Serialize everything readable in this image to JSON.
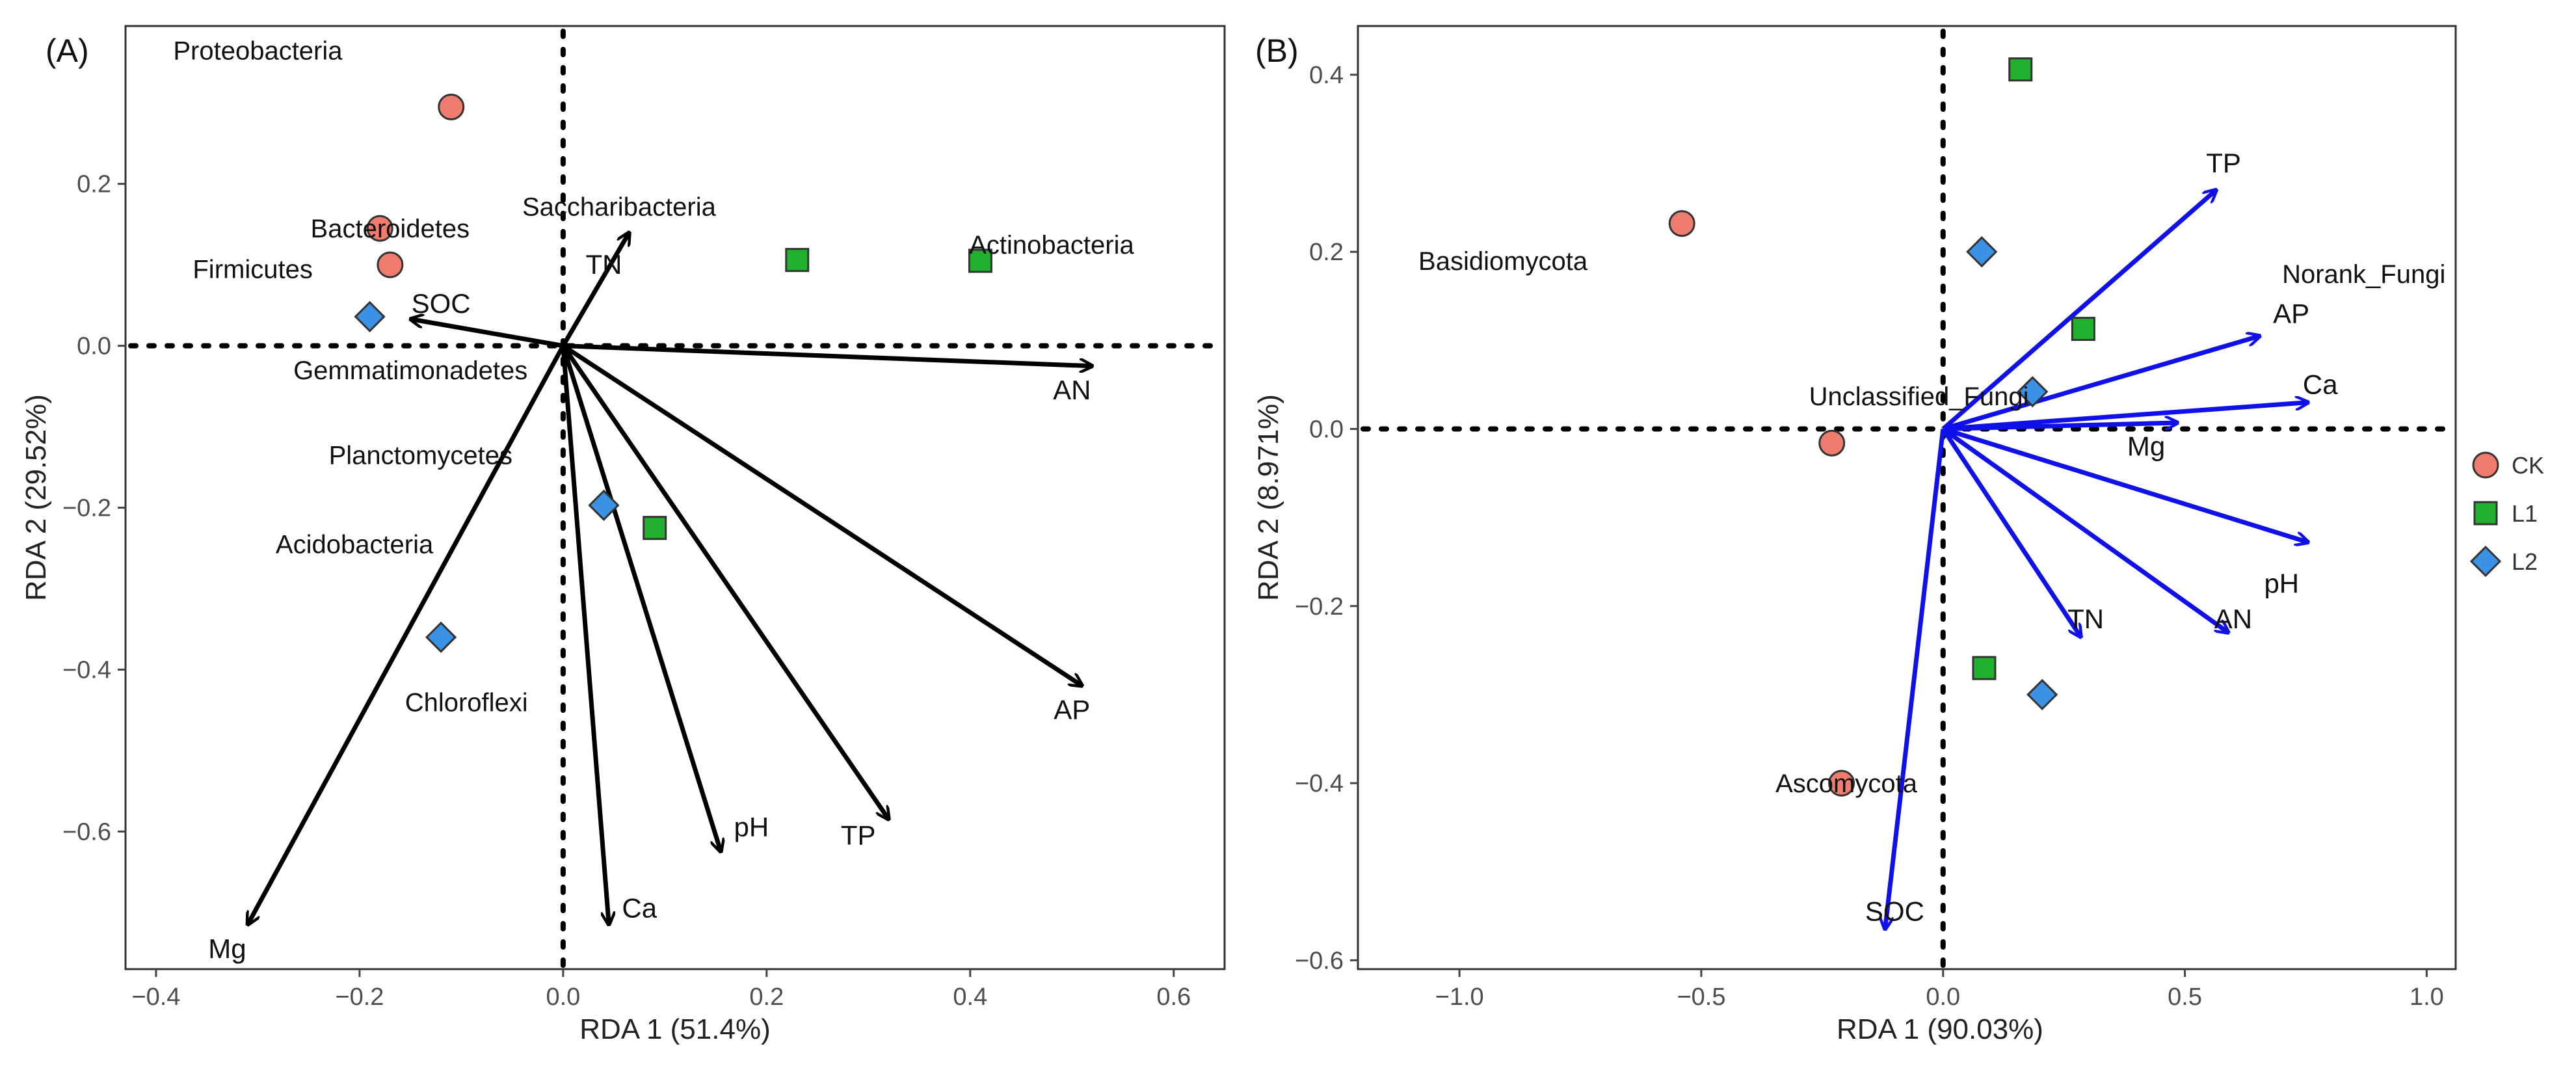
{
  "chart_data": [
    {
      "type": "scatter",
      "subtype": "rda-biplot",
      "panel_label": "(A)",
      "xlabel": "RDA 1 (51.4%)",
      "ylabel": "RDA 2 (29.52%)",
      "xlim": [
        -0.43,
        0.65
      ],
      "ylim": [
        -0.77,
        0.395
      ],
      "xticks": [
        -0.4,
        -0.2,
        0.0,
        0.2,
        0.4,
        0.6
      ],
      "xtick_labels": [
        "−0.4",
        "−0.2",
        "0.0",
        "0.2",
        "0.4",
        "0.6"
      ],
      "yticks": [
        0.2,
        0.0,
        -0.2,
        -0.4,
        -0.6
      ],
      "ytick_labels": [
        "0.2",
        "0.0",
        "−0.2",
        "−0.4",
        "−0.6"
      ],
      "arrow_color": "#000000",
      "samples": [
        {
          "group": "CK",
          "x": -0.11,
          "y": 0.295
        },
        {
          "group": "CK",
          "x": -0.18,
          "y": 0.145
        },
        {
          "group": "CK",
          "x": -0.17,
          "y": 0.1
        },
        {
          "group": "L1",
          "x": 0.23,
          "y": 0.106
        },
        {
          "group": "L1",
          "x": 0.41,
          "y": 0.105
        },
        {
          "group": "L1",
          "x": 0.09,
          "y": -0.225
        },
        {
          "group": "L2",
          "x": -0.19,
          "y": 0.036
        },
        {
          "group": "L2",
          "x": 0.04,
          "y": -0.197
        },
        {
          "group": "L2",
          "x": -0.12,
          "y": -0.36
        }
      ],
      "vectors": [
        {
          "name": "TN",
          "x": 0.065,
          "y": 0.14,
          "lx": 0.04,
          "ly": 0.1
        },
        {
          "name": "SOC",
          "x": -0.15,
          "y": 0.033,
          "lx": -0.12,
          "ly": 0.052
        },
        {
          "name": "AN",
          "x": 0.52,
          "y": -0.025,
          "lx": 0.5,
          "ly": -0.055
        },
        {
          "name": "AP",
          "x": 0.51,
          "y": -0.42,
          "lx": 0.5,
          "ly": -0.45
        },
        {
          "name": "TP",
          "x": 0.32,
          "y": -0.585,
          "lx": 0.29,
          "ly": -0.605
        },
        {
          "name": "pH",
          "x": 0.155,
          "y": -0.625,
          "lx": 0.185,
          "ly": -0.595
        },
        {
          "name": "Ca",
          "x": 0.045,
          "y": -0.715,
          "lx": 0.075,
          "ly": -0.695
        },
        {
          "name": "Mg",
          "x": -0.31,
          "y": -0.715,
          "lx": -0.33,
          "ly": -0.745
        }
      ],
      "taxa": [
        {
          "name": "Proteobacteria",
          "x": -0.3,
          "y": 0.365
        },
        {
          "name": "Bacteroidetes",
          "x": -0.17,
          "y": 0.145
        },
        {
          "name": "Firmicutes",
          "x": -0.305,
          "y": 0.095
        },
        {
          "name": "Saccharibacteria",
          "x": 0.055,
          "y": 0.172
        },
        {
          "name": "Actinobacteria",
          "x": 0.48,
          "y": 0.125
        },
        {
          "name": "Gemmatimonadetes",
          "x": -0.15,
          "y": -0.03
        },
        {
          "name": "Planctomycetes",
          "x": -0.14,
          "y": -0.135
        },
        {
          "name": "Acidobacteria",
          "x": -0.205,
          "y": -0.245
        },
        {
          "name": "Chloroflexi",
          "x": -0.095,
          "y": -0.44
        }
      ]
    },
    {
      "type": "scatter",
      "subtype": "rda-biplot",
      "panel_label": "(B)",
      "xlabel": "RDA 1 (90.03%)",
      "ylabel": "RDA 2 (8.971%)",
      "xlim": [
        -1.21,
        1.06
      ],
      "ylim": [
        -0.61,
        0.455
      ],
      "xticks": [
        -1.0,
        -0.5,
        0.0,
        0.5,
        1.0
      ],
      "xtick_labels": [
        "−1.0",
        "−0.5",
        "0.0",
        "0.5",
        "1.0"
      ],
      "yticks": [
        0.4,
        0.2,
        0.0,
        -0.2,
        -0.4,
        -0.6
      ],
      "ytick_labels": [
        "0.4",
        "0.2",
        "0.0",
        "−0.2",
        "−0.4",
        "−0.6"
      ],
      "arrow_color": "#1010e8",
      "samples": [
        {
          "group": "CK",
          "x": -0.54,
          "y": 0.232
        },
        {
          "group": "CK",
          "x": -0.23,
          "y": -0.016
        },
        {
          "group": "CK",
          "x": -0.21,
          "y": -0.4
        },
        {
          "group": "L1",
          "x": 0.16,
          "y": 0.406
        },
        {
          "group": "L1",
          "x": 0.29,
          "y": 0.113
        },
        {
          "group": "L1",
          "x": 0.085,
          "y": -0.27
        },
        {
          "group": "L2",
          "x": 0.08,
          "y": 0.2
        },
        {
          "group": "L2",
          "x": 0.185,
          "y": 0.042
        },
        {
          "group": "L2",
          "x": 0.205,
          "y": -0.3
        }
      ],
      "vectors": [
        {
          "name": "TP",
          "x": 0.565,
          "y": 0.27,
          "lx": 0.58,
          "ly": 0.3
        },
        {
          "name": "AP",
          "x": 0.655,
          "y": 0.105,
          "lx": 0.72,
          "ly": 0.13
        },
        {
          "name": "Ca",
          "x": 0.755,
          "y": 0.03,
          "lx": 0.78,
          "ly": 0.05
        },
        {
          "name": "Mg",
          "x": 0.485,
          "y": 0.007,
          "lx": 0.42,
          "ly": -0.02
        },
        {
          "name": "pH",
          "x": 0.755,
          "y": -0.128,
          "lx": 0.7,
          "ly": -0.175
        },
        {
          "name": "AN",
          "x": 0.59,
          "y": -0.23,
          "lx": 0.6,
          "ly": -0.215
        },
        {
          "name": "TN",
          "x": 0.285,
          "y": -0.235,
          "lx": 0.295,
          "ly": -0.215
        },
        {
          "name": "SOC",
          "x": -0.12,
          "y": -0.565,
          "lx": -0.1,
          "ly": -0.545
        }
      ],
      "taxa": [
        {
          "name": "Basidiomycota",
          "x": -0.91,
          "y": 0.19
        },
        {
          "name": "Norank_Fungi",
          "x": 0.87,
          "y": 0.175
        },
        {
          "name": "Unclassified_Fungi",
          "x": -0.05,
          "y": 0.037
        },
        {
          "name": "Ascomycota",
          "x": -0.2,
          "y": -0.4
        }
      ]
    }
  ],
  "legend": {
    "items": [
      {
        "label": "CK",
        "shape": "circle",
        "color": "#f07b6f"
      },
      {
        "label": "L1",
        "shape": "square",
        "color": "#22b02f"
      },
      {
        "label": "L2",
        "shape": "diamond",
        "color": "#3b91e3"
      }
    ]
  }
}
